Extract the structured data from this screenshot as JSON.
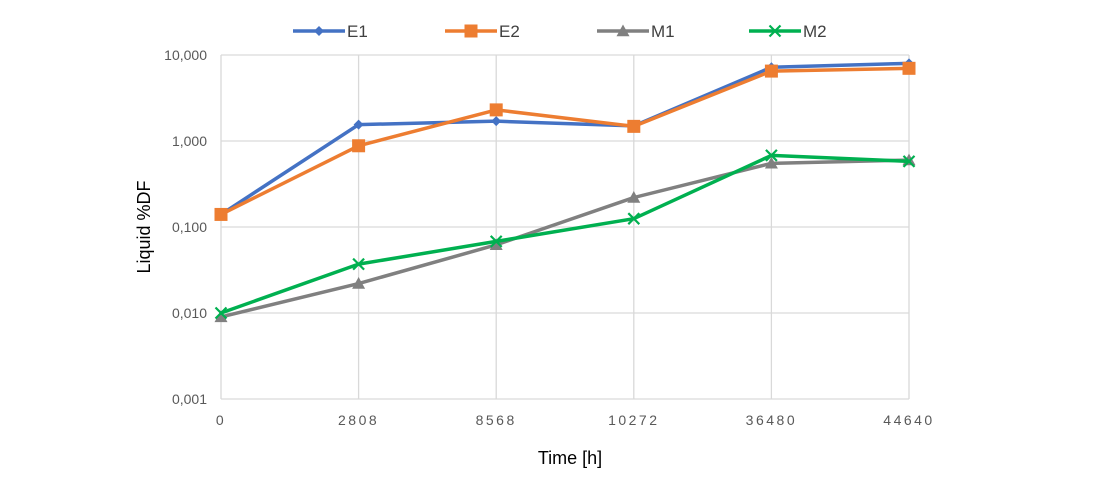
{
  "chart_data": {
    "type": "line",
    "x_categories": [
      "0",
      "2808",
      "8568",
      "10272",
      "36480",
      "44640"
    ],
    "xlabel": "Time [h]",
    "ylabel": "Liquid %DF",
    "y_scale": "log",
    "ylim": [
      0.001,
      10
    ],
    "y_ticks": [
      0.001,
      0.01,
      0.1,
      1,
      10
    ],
    "y_tick_labels": [
      "0,001",
      "0,010",
      "0,100",
      "1,000",
      "10,000"
    ],
    "grid": true,
    "legend_position": "top",
    "series": [
      {
        "name": "E1",
        "color": "#4472C4",
        "marker": "diamond",
        "values": [
          0.14,
          1.55,
          1.7,
          1.5,
          7.2,
          8.0
        ]
      },
      {
        "name": "E2",
        "color": "#ED7D31",
        "marker": "square",
        "values": [
          0.14,
          0.88,
          2.3,
          1.48,
          6.5,
          7.0
        ]
      },
      {
        "name": "M1",
        "color": "#808080",
        "marker": "triangle",
        "values": [
          0.009,
          0.022,
          0.062,
          0.22,
          0.55,
          0.6
        ]
      },
      {
        "name": "M2",
        "color": "#00B050",
        "marker": "x",
        "values": [
          0.01,
          0.037,
          0.068,
          0.125,
          0.68,
          0.58
        ]
      }
    ]
  }
}
